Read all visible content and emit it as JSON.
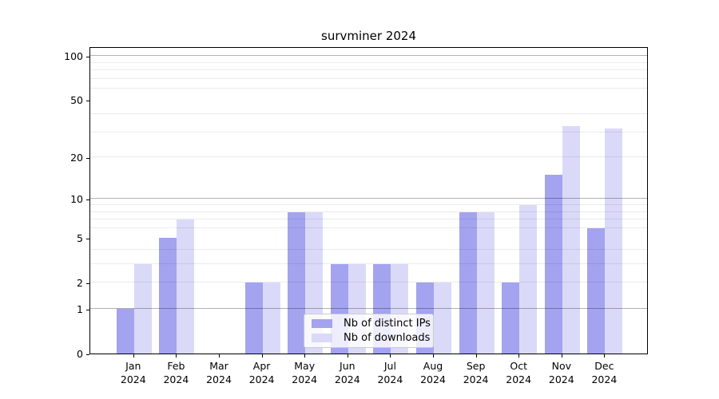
{
  "chart_data": {
    "type": "bar",
    "title": "survminer 2024",
    "categories": [
      "Jan",
      "Feb",
      "Mar",
      "Apr",
      "May",
      "Jun",
      "Jul",
      "Aug",
      "Sep",
      "Oct",
      "Nov",
      "Dec"
    ],
    "year_label": "2024",
    "series": [
      {
        "name": "Nb of distinct IPs",
        "color": "#a3a3ef",
        "values": [
          1,
          5,
          0,
          2,
          8,
          3,
          3,
          2,
          8,
          2,
          15,
          6
        ]
      },
      {
        "name": "Nb of downloads",
        "color": "#dadaf8",
        "values": [
          3,
          7,
          0,
          2,
          8,
          3,
          3,
          2,
          8,
          9,
          33,
          32
        ]
      }
    ],
    "y_axis": {
      "scale": "log1p",
      "tick_labels": [
        0,
        1,
        2,
        5,
        10,
        20,
        50,
        100
      ],
      "major_gridlines": [
        1,
        10,
        100
      ],
      "minor_gridlines": [
        2,
        3,
        4,
        6,
        7,
        8,
        9,
        20,
        30,
        40,
        60,
        70,
        80,
        90
      ],
      "ylim_top_value": 116
    },
    "legend_position": "lower center",
    "grid": "on"
  }
}
